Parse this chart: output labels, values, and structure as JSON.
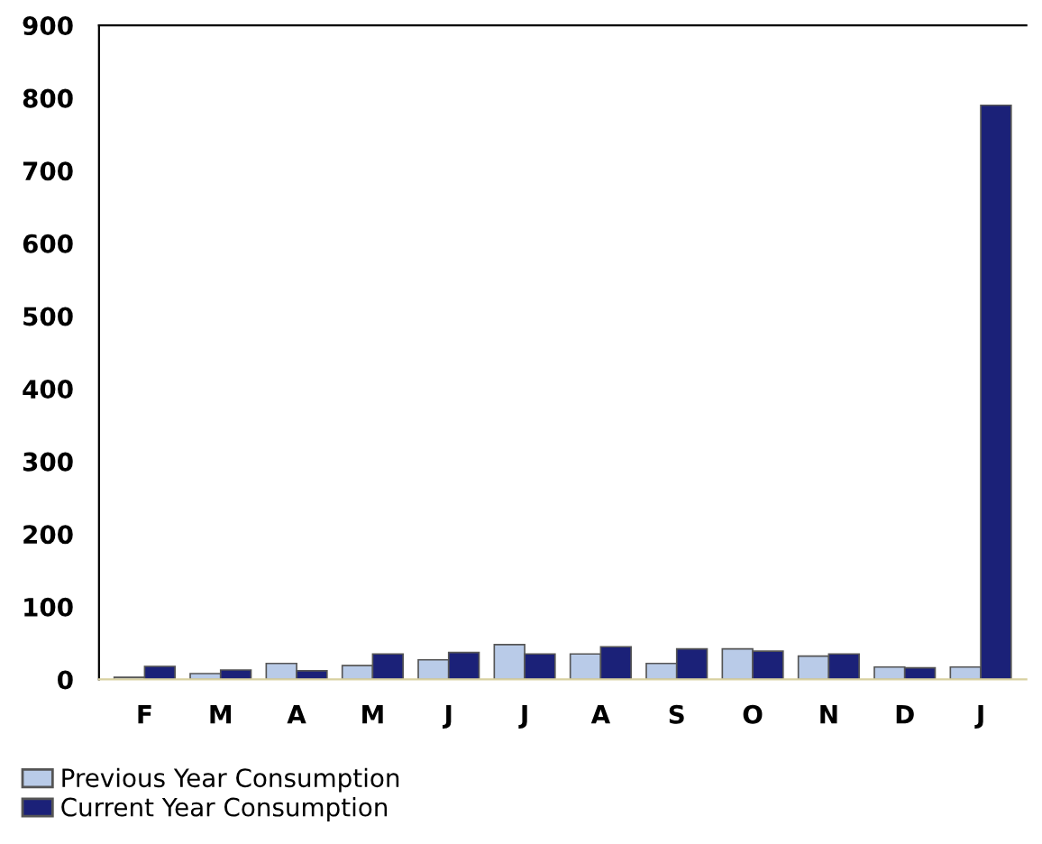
{
  "chart_data": {
    "type": "bar",
    "categories": [
      "F",
      "M",
      "A",
      "M",
      "J",
      "J",
      "A",
      "S",
      "O",
      "N",
      "D",
      "J"
    ],
    "series": [
      {
        "name": "Previous Year Consumption",
        "color": "#b9cbe8",
        "values": [
          3,
          8,
          22,
          19,
          27,
          48,
          35,
          22,
          42,
          32,
          17,
          17
        ]
      },
      {
        "name": "Current Year Consumption",
        "color": "#1b2178",
        "values": [
          18,
          13,
          12,
          35,
          37,
          35,
          45,
          42,
          39,
          35,
          16,
          790
        ]
      }
    ],
    "ylim": [
      0,
      900
    ],
    "yticks": [
      0,
      100,
      200,
      300,
      400,
      500,
      600,
      700,
      800,
      900
    ],
    "grid": false,
    "legend": "bottom left"
  }
}
